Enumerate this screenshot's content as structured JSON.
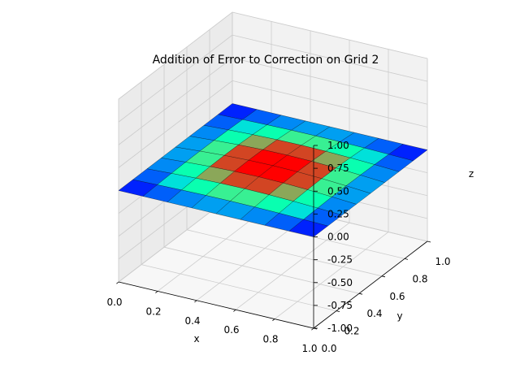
{
  "chart_data": {
    "type": "surface3d",
    "title": "Addition of Error to Correction on Grid 2",
    "xlabel": "x",
    "ylabel": "y",
    "zlabel": "z",
    "xlim": [
      0.0,
      1.0
    ],
    "ylim": [
      0.0,
      1.0
    ],
    "zlim": [
      -1.0,
      1.0
    ],
    "xticks": [
      "0.0",
      "0.2",
      "0.4",
      "0.6",
      "0.8",
      "1.0"
    ],
    "yticks": [
      "0.0",
      "0.2",
      "0.4",
      "0.6",
      "0.8",
      "1.0"
    ],
    "zticks": [
      "-1.00",
      "-0.75",
      "-0.50",
      "-0.25",
      "0.00",
      "0.25",
      "0.50",
      "0.75",
      "1.00"
    ],
    "grid": true,
    "colormap": "rainbow",
    "grid_nodes": [
      0.0,
      0.125,
      0.25,
      0.375,
      0.5,
      0.625,
      0.75,
      0.875,
      1.0
    ],
    "surface_peak": 0.05
  }
}
